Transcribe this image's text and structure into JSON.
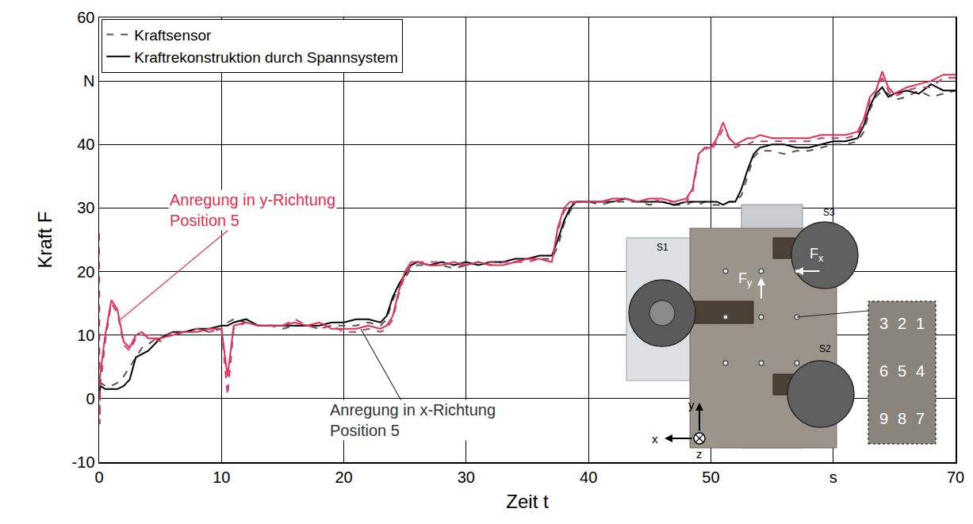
{
  "chart_data": {
    "type": "line",
    "x_label": "Zeit t",
    "y_label": "Kraft F",
    "xlim": [
      0,
      70
    ],
    "ylim": [
      -10,
      60
    ],
    "xticks": [
      0,
      10,
      20,
      30,
      40,
      50,
      {
        "value": 60,
        "label": "s"
      },
      70
    ],
    "yticks": [
      -10,
      0,
      10,
      20,
      30,
      40,
      {
        "value": 50,
        "label": "N"
      },
      60
    ],
    "grid": true,
    "legend": "upper left",
    "x": [
      0,
      0.05,
      0.1,
      0.5,
      1,
      1.5,
      2,
      2.5,
      3,
      3.5,
      4,
      5,
      6,
      7,
      8,
      9,
      10,
      10.5,
      11,
      12,
      13,
      14,
      15,
      16,
      17,
      18,
      19,
      20,
      21,
      22,
      23,
      23.5,
      24,
      24.5,
      25,
      25.5,
      26,
      27,
      28,
      29,
      30,
      31,
      32,
      33,
      34,
      35,
      36,
      37,
      37.5,
      38,
      38.5,
      39,
      40,
      41,
      42,
      43,
      44,
      45,
      46,
      47,
      48,
      48.5,
      49,
      49.5,
      50,
      50.5,
      51,
      51.5,
      52,
      52.5,
      53,
      53.5,
      54,
      55,
      56,
      57,
      58,
      59,
      60,
      61,
      62,
      62.5,
      63,
      63.5,
      64,
      64.5,
      65,
      66,
      67,
      68,
      69,
      70
    ],
    "series": [
      {
        "name": "Kraftsensor",
        "color": "#555555",
        "line_style": "dashed",
        "values": [
          0,
          1.5,
          2.5,
          2,
          2,
          2.5,
          3.5,
          5,
          6.5,
          8,
          8.5,
          10,
          10,
          10.5,
          11,
          10.5,
          11,
          12,
          12.5,
          12,
          11.5,
          11.5,
          11,
          11.5,
          11.5,
          11,
          11.5,
          11.5,
          11.5,
          12,
          11.5,
          12.5,
          15.5,
          17.5,
          19,
          20.5,
          21,
          21,
          21,
          20.5,
          21,
          21.5,
          21,
          21.5,
          21.5,
          22,
          22,
          22,
          24,
          27.5,
          29.5,
          31,
          31,
          30.5,
          31,
          31,
          31,
          30.5,
          31,
          30.5,
          30.5,
          31,
          30.5,
          31,
          30.5,
          30.5,
          30.5,
          31,
          31,
          32,
          35,
          38,
          39,
          39,
          38.5,
          39,
          39,
          39.5,
          40,
          40,
          40.5,
          42,
          45.5,
          47.5,
          48.5,
          48,
          47,
          47.5,
          48.5,
          47.5,
          48,
          48.5
        ]
      },
      {
        "name": "Kraftrekonstruktion durch Spannsystem",
        "color": "#000000",
        "line_style": "solid",
        "values": [
          0,
          1,
          2,
          1.5,
          1.5,
          1.5,
          2,
          3,
          6.5,
          7,
          7.5,
          9.5,
          10.5,
          10.5,
          11,
          11,
          11.5,
          11.5,
          12,
          12.5,
          11.5,
          11.5,
          11.5,
          11.5,
          11.5,
          11.5,
          12,
          12,
          12.5,
          12.5,
          12,
          13,
          16,
          18,
          19.5,
          21,
          21.5,
          21,
          21.5,
          21,
          21.5,
          21,
          21.5,
          21.5,
          22,
          22,
          22.5,
          22.5,
          25,
          28,
          30,
          31,
          31,
          31,
          31,
          31.5,
          31,
          31,
          31,
          30.5,
          31,
          31,
          31,
          31,
          31,
          31,
          30.5,
          31,
          31,
          33,
          36,
          38.5,
          39.5,
          40,
          40,
          39.5,
          39.5,
          40,
          40.5,
          40.5,
          41,
          43,
          46,
          48,
          49,
          47.5,
          48,
          48.5,
          48,
          49.5,
          48.5,
          48.5
        ]
      },
      {
        "color": "#e62e4d",
        "line_style": "solid",
        "values": [
          2,
          3,
          4,
          10,
          15.5,
          14,
          9,
          8,
          10,
          10.5,
          9.5,
          9.5,
          10,
          10.5,
          10.5,
          11,
          11,
          3.5,
          11.5,
          12,
          11.5,
          11.5,
          11.5,
          12,
          11.5,
          12,
          11,
          11,
          11,
          11.5,
          11,
          11.5,
          13,
          17,
          20,
          21.5,
          21.5,
          21,
          21,
          21.5,
          21,
          21.5,
          21,
          21,
          21.5,
          22,
          22,
          21.5,
          27,
          30,
          31,
          31,
          31,
          31,
          31.5,
          31.5,
          31,
          31.5,
          31.5,
          31,
          31.5,
          33,
          38.5,
          39.5,
          39.5,
          41,
          43.5,
          41,
          40,
          40.5,
          41,
          41,
          41.5,
          41,
          41,
          41,
          41,
          41.5,
          41.5,
          41.5,
          42,
          44,
          47.5,
          48.5,
          51.5,
          49,
          48,
          49,
          49.5,
          50,
          51,
          51
        ]
      },
      {
        "color": "#cc3a78",
        "line_style": "dashed",
        "values": [
          26,
          -4,
          2,
          9,
          15,
          13.5,
          8.5,
          7.5,
          9.5,
          10,
          10,
          9,
          10.5,
          10.5,
          11,
          10.5,
          11,
          0.5,
          11,
          12,
          11.5,
          11.5,
          11.5,
          12.5,
          11.5,
          11,
          11.5,
          10.5,
          10.5,
          11,
          10.5,
          11,
          12.5,
          16.5,
          19.5,
          21,
          21.5,
          21.5,
          21.5,
          21,
          21,
          21.5,
          21.5,
          21.5,
          21.5,
          21.5,
          22,
          21.5,
          26.5,
          29.5,
          30.5,
          31,
          31,
          31,
          31,
          31.5,
          31,
          31.5,
          31,
          31,
          31,
          32.5,
          38,
          39.5,
          39,
          40.5,
          42.5,
          41,
          39.5,
          40,
          40,
          40.5,
          40.5,
          40.5,
          40.5,
          40.5,
          40.5,
          41,
          41,
          41,
          41.5,
          43.5,
          47,
          48.5,
          50.5,
          48.5,
          47.5,
          48.5,
          49,
          49,
          50.5,
          50.5
        ]
      }
    ],
    "annotations": [
      {
        "lines": [
          "Anregung in y-Richtung",
          "Position 5"
        ],
        "color": "#e62e4d"
      },
      {
        "lines": [
          "Anregung in x-Richtung",
          "Position 5"
        ],
        "color": "#333333"
      }
    ],
    "inset": {
      "clamps": [
        "S1",
        "S2",
        "S3"
      ],
      "forces": [
        "Fx",
        "Fy"
      ],
      "axes": [
        "x",
        "y",
        "z"
      ],
      "positions": [
        [
          3,
          2,
          1
        ],
        [
          6,
          5,
          4
        ],
        [
          9,
          8,
          7
        ]
      ]
    }
  }
}
